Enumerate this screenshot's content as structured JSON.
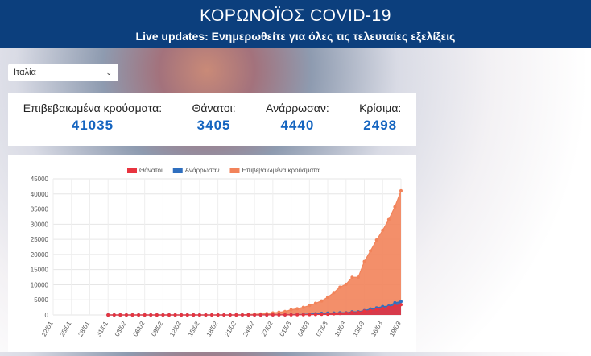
{
  "header": {
    "title": "ΚΟΡΩΝΟΪΟΣ COVID-19",
    "subtitle": "Live updates: Ενημερωθείτε για όλες τις τελευταίες εξελίξεις"
  },
  "selector": {
    "value": "Ιταλία"
  },
  "stats": [
    {
      "label": "Επιβεβαιωμένα κρούσματα:",
      "value": "41035"
    },
    {
      "label": "Θάνατοι:",
      "value": "3405"
    },
    {
      "label": "Ανάρρωσαν:",
      "value": "4440"
    },
    {
      "label": "Κρίσιμα:",
      "value": "2498"
    }
  ],
  "chart_data": {
    "type": "line",
    "area": true,
    "markers": true,
    "grid": true,
    "legend": "top",
    "categories": [
      "22/01",
      null,
      null,
      "25/01",
      null,
      null,
      "28/01",
      null,
      null,
      "31/01",
      null,
      null,
      "03/02",
      null,
      null,
      "06/02",
      null,
      null,
      "09/02",
      null,
      null,
      "12/02",
      null,
      null,
      "15/02",
      null,
      null,
      "18/02",
      null,
      null,
      "21/02",
      null,
      null,
      "24/02",
      null,
      null,
      "27/02",
      null,
      null,
      "01/03",
      null,
      null,
      "04/03",
      null,
      null,
      "07/03",
      null,
      null,
      "10/03",
      null,
      null,
      "13/03",
      null,
      null,
      "16/03",
      null,
      null,
      "19/03"
    ],
    "series": [
      {
        "name": "Θάνατοι",
        "color": "#e8343f",
        "values": [
          null,
          null,
          null,
          null,
          null,
          null,
          null,
          null,
          null,
          0,
          0,
          0,
          0,
          0,
          0,
          0,
          0,
          0,
          0,
          0,
          0,
          0,
          0,
          0,
          0,
          0,
          0,
          0,
          0,
          0,
          1,
          2,
          3,
          7,
          10,
          12,
          17,
          21,
          29,
          34,
          52,
          79,
          107,
          148,
          197,
          233,
          366,
          463,
          631,
          827,
          827,
          1266,
          1441,
          1809,
          2158,
          2503,
          2978,
          3405
        ]
      },
      {
        "name": "Ανάρρωσαν",
        "color": "#2f6fbf",
        "values": [
          null,
          null,
          null,
          null,
          null,
          null,
          null,
          null,
          null,
          0,
          0,
          0,
          0,
          0,
          0,
          0,
          0,
          0,
          0,
          0,
          0,
          0,
          0,
          0,
          0,
          0,
          0,
          0,
          0,
          0,
          0,
          1,
          2,
          1,
          1,
          3,
          45,
          46,
          46,
          83,
          149,
          160,
          276,
          414,
          523,
          589,
          622,
          724,
          724,
          1045,
          1045,
          1439,
          1966,
          2335,
          2749,
          2941,
          4025,
          4440
        ]
      },
      {
        "name": "Επιβεβαιωμένα κρούσματα",
        "color": "#f2835a",
        "values": [
          null,
          null,
          null,
          null,
          null,
          null,
          null,
          null,
          null,
          2,
          2,
          2,
          2,
          2,
          2,
          2,
          3,
          3,
          3,
          3,
          3,
          3,
          3,
          3,
          3,
          3,
          3,
          3,
          3,
          3,
          20,
          62,
          155,
          229,
          322,
          453,
          655,
          888,
          1128,
          1694,
          2036,
          2502,
          3089,
          3858,
          4636,
          5883,
          7375,
          9172,
          10149,
          12462,
          12462,
          17660,
          21157,
          24747,
          27980,
          31506,
          35713,
          41035
        ]
      }
    ],
    "ylim": [
      0,
      45000
    ],
    "yticks": [
      0,
      5000,
      10000,
      15000,
      20000,
      25000,
      30000,
      35000,
      40000,
      45000
    ]
  }
}
